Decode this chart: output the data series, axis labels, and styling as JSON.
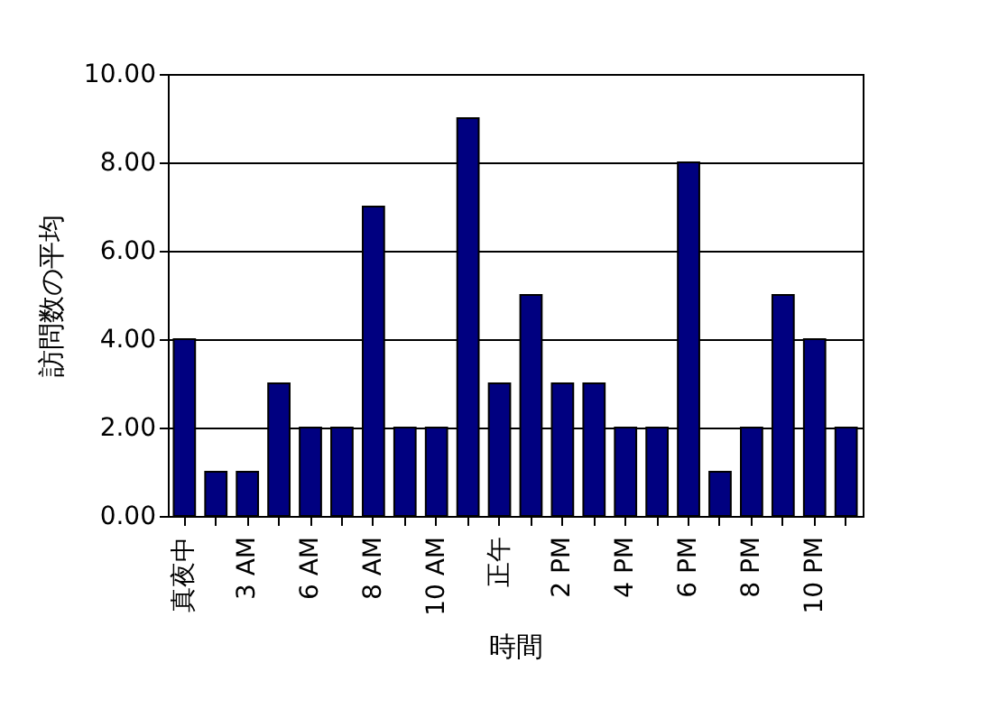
{
  "chart_data": {
    "type": "bar",
    "xlabel": "時間",
    "ylabel": "訪問数の平均",
    "categories": [
      "真夜中",
      null,
      "3 AM",
      null,
      "6 AM",
      null,
      "8 AM",
      null,
      "10 AM",
      null,
      "正午",
      null,
      "2 PM",
      null,
      "4 PM",
      null,
      "6 PM",
      null,
      "8 PM",
      null,
      "10 PM",
      null
    ],
    "values": [
      4,
      1,
      1,
      3,
      2,
      2,
      7,
      2,
      2,
      9,
      3,
      5,
      3,
      3,
      2,
      2,
      8,
      1,
      2,
      5,
      4,
      2
    ],
    "color": "#000080",
    "ylim": [
      0,
      10
    ],
    "yticks": [
      {
        "value": 0,
        "label": "0.00"
      },
      {
        "value": 2,
        "label": "2.00"
      },
      {
        "value": 4,
        "label": "4.00"
      },
      {
        "value": 6,
        "label": "6.00"
      },
      {
        "value": 8,
        "label": "8.00"
      },
      {
        "value": 10,
        "label": "10.00"
      }
    ],
    "grid": "y"
  }
}
